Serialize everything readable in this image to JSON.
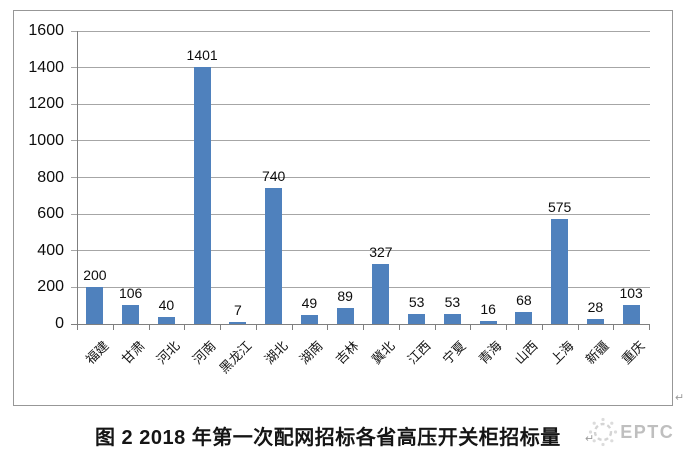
{
  "chart_data": {
    "type": "bar",
    "title": "图 2 2018 年第一次配网招标各省高压开关柜招标量",
    "categories": [
      "福建",
      "甘肃",
      "河北",
      "河南",
      "黑龙江",
      "湖北",
      "湖南",
      "吉林",
      "冀北",
      "江西",
      "宁夏",
      "青海",
      "山西",
      "上海",
      "新疆",
      "重庆"
    ],
    "values": [
      200,
      106,
      40,
      1401,
      7,
      740,
      49,
      89,
      327,
      53,
      53,
      16,
      68,
      575,
      28,
      103
    ],
    "xlabel": "",
    "ylabel": "",
    "ylim": [
      0,
      1600
    ],
    "yticks": [
      0,
      200,
      400,
      600,
      800,
      1000,
      1200,
      1400,
      1600
    ],
    "grid": true,
    "legend": "none",
    "value_labels": true,
    "x_label_rotation_deg": 45
  },
  "watermark": {
    "label": "EPTC"
  },
  "marks": {
    "return_symbol": "↵"
  },
  "colors": {
    "bar": "#4F81BD",
    "grid": "#a6a6a6",
    "axis": "#7f7f7f",
    "frame": "#979797",
    "text": "#0d0d0d",
    "watermark": "#bfbfbf"
  }
}
